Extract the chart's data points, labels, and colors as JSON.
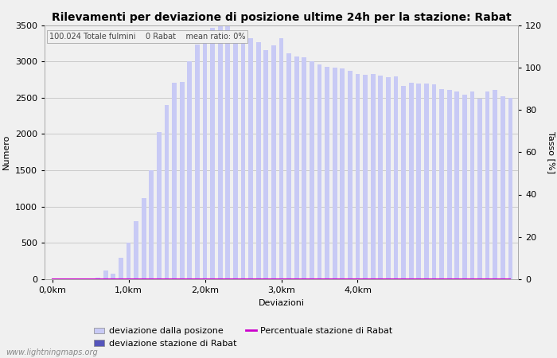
{
  "title": "Rilevamenti per deviazione di posizione ultime 24h per la stazione: Rabat",
  "xlabel": "Deviazioni",
  "ylabel_left": "Numero",
  "ylabel_right": "Tasso [%]",
  "subtitle": "100.024 Totale fulmini    0 Rabat    mean ratio: 0%",
  "watermark": "www.lightningmaps.org",
  "bar_color_light": "#c8caf5",
  "bar_color_dark": "#5555bb",
  "line_color": "#cc00cc",
  "ylim_left": [
    0,
    3500
  ],
  "ylim_right": [
    0,
    120
  ],
  "yticks_left": [
    0,
    500,
    1000,
    1500,
    2000,
    2500,
    3000,
    3500
  ],
  "yticks_right": [
    0,
    20,
    40,
    60,
    80,
    100,
    120
  ],
  "xtick_labels": [
    "0,0km",
    "1,0km",
    "2,0km",
    "3,0km",
    "4,0km"
  ],
  "xtick_positions": [
    0,
    10,
    20,
    30,
    40
  ],
  "bar_values": [
    5,
    5,
    5,
    5,
    5,
    10,
    20,
    120,
    80,
    300,
    500,
    800,
    1120,
    1500,
    2030,
    2400,
    2710,
    2720,
    3000,
    3230,
    3250,
    3460,
    3490,
    3500,
    3380,
    3320,
    3320,
    3260,
    3150,
    3220,
    3320,
    3110,
    3070,
    3060,
    3000,
    2960,
    2930,
    2910,
    2900,
    2870,
    2830,
    2810,
    2830,
    2800,
    2780,
    2790,
    2660,
    2710,
    2700,
    2700,
    2680,
    2620,
    2610,
    2590,
    2540,
    2580,
    2490,
    2580,
    2610,
    2520,
    2500
  ],
  "station_bar_values": [
    0,
    0,
    0,
    0,
    0,
    0,
    0,
    0,
    0,
    0,
    0,
    0,
    0,
    0,
    0,
    0,
    0,
    0,
    0,
    0,
    0,
    0,
    0,
    0,
    0,
    0,
    0,
    0,
    0,
    0,
    0,
    0,
    0,
    0,
    0,
    0,
    0,
    0,
    0,
    0,
    0,
    0,
    0,
    0,
    0,
    0,
    0,
    0,
    0,
    0,
    0,
    0,
    0,
    0,
    0,
    0,
    0,
    0,
    0,
    0,
    0
  ],
  "percentage_values": [
    0,
    0,
    0,
    0,
    0,
    0,
    0,
    0,
    0,
    0,
    0,
    0,
    0,
    0,
    0,
    0,
    0,
    0,
    0,
    0,
    0,
    0,
    0,
    0,
    0,
    0,
    0,
    0,
    0,
    0,
    0,
    0,
    0,
    0,
    0,
    0,
    0,
    0,
    0,
    0,
    0,
    0,
    0,
    0,
    0,
    0,
    0,
    0,
    0,
    0,
    0,
    0,
    0,
    0,
    0,
    0,
    0,
    0,
    0,
    0,
    0
  ],
  "legend_labels": [
    "deviazione dalla posizone",
    "deviazione stazione di Rabat",
    "Percentuale stazione di Rabat"
  ],
  "background_color": "#f0f0f0",
  "plot_bg_color": "#f0f0f0",
  "grid_color": "#bbbbbb",
  "title_fontsize": 10,
  "axis_fontsize": 8,
  "tick_fontsize": 8
}
